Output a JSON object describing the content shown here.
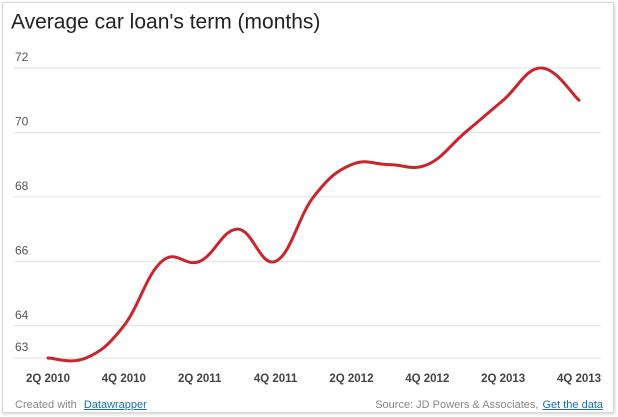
{
  "chart_data": {
    "type": "line",
    "title": "Average car loan's term (months)",
    "categories": [
      "2Q 2010",
      null,
      "4Q 2010",
      null,
      "2Q 2011",
      null,
      "4Q 2011",
      null,
      "2Q 2012",
      null,
      "4Q 2012",
      null,
      "2Q 2013",
      null,
      "4Q 2013"
    ],
    "series": [
      {
        "color": "#c9252c",
        "values": [
          63,
          63,
          64,
          66,
          66,
          67,
          66,
          68,
          69,
          69,
          69,
          70,
          71,
          72,
          71
        ]
      }
    ],
    "ylim": [
      63,
      72
    ],
    "yticks": [
      63,
      64,
      66,
      68,
      70,
      72
    ],
    "grid": true
  },
  "footer": {
    "credit_prefix": "Created with",
    "credit_link": "Datawrapper",
    "source": "Source: JD Powers & Associates,",
    "data_link": "Get the data"
  }
}
